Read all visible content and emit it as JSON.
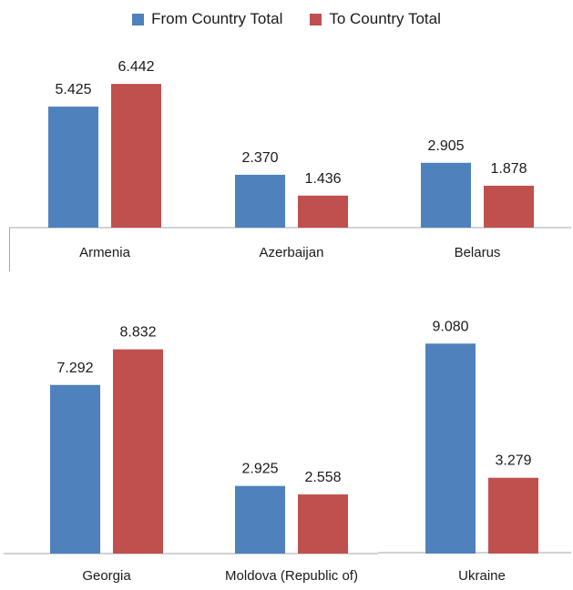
{
  "legend": {
    "items": [
      {
        "label": "From Country Total",
        "color": "#4f81bd"
      },
      {
        "label": "To Country Total",
        "color": "#c0504d"
      }
    ]
  },
  "chart_data": {
    "type": "bar",
    "title": "",
    "xlabel": "",
    "ylabel": "",
    "grid": false,
    "legend_position": "top",
    "categories": [
      "Armenia",
      "Azerbaijan",
      "Belarus",
      "Georgia",
      "Moldova (Republic of)",
      "Ukraine"
    ],
    "series": [
      {
        "name": "From Country Total",
        "color": "#4f81bd",
        "values": [
          5.425,
          2.37,
          2.905,
          7.292,
          2.925,
          9.08
        ],
        "labels": [
          "5.425",
          "2.370",
          "2.905",
          "7.292",
          "2.925",
          "9.080"
        ]
      },
      {
        "name": "To Country Total",
        "color": "#c0504d",
        "values": [
          6.442,
          1.436,
          1.878,
          8.832,
          2.558,
          3.279
        ],
        "labels": [
          "6.442",
          "1.436",
          "1.878",
          "8.832",
          "2.558",
          "3.279"
        ]
      }
    ]
  }
}
